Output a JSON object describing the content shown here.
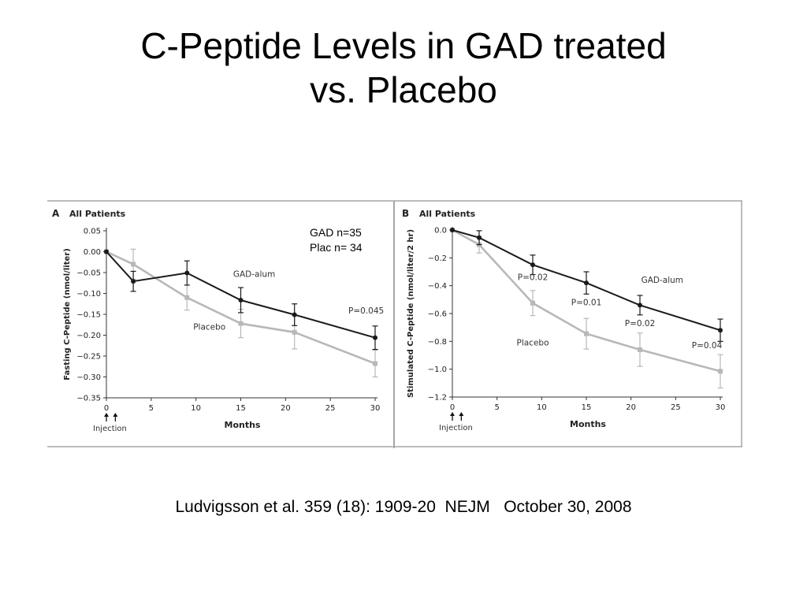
{
  "slide": {
    "title_line1": "C-Peptide Levels in GAD treated",
    "title_line2": "vs. Placebo",
    "citation": "Ludvigsson et al. 359 (18): 1909-20  NEJM   October 30, 2008",
    "note_gad": "GAD n=35",
    "note_plac": "Plac n= 34"
  },
  "colors": {
    "gad": "#1a1a1a",
    "placebo": "#b8b8b8",
    "frame": "#a6a6a6"
  },
  "chart_data": [
    {
      "type": "line",
      "panel_letter": "A",
      "panel_title": "All Patients",
      "xlabel": "Months",
      "ylabel": "Fasting C-Peptide (nmol/liter)",
      "xlim": [
        0,
        30
      ],
      "ylim": [
        -0.35,
        0.05
      ],
      "x_ticks": [
        0,
        5,
        10,
        15,
        20,
        25,
        30
      ],
      "x_tick_labels": [
        "0",
        "5",
        "10",
        "15",
        "20",
        "25",
        "30"
      ],
      "y_ticks": [
        0.05,
        0.0,
        -0.05,
        -0.1,
        -0.15,
        -0.2,
        -0.25,
        -0.3,
        -0.35
      ],
      "y_tick_labels": [
        "0.05",
        "0.00",
        "−0.05",
        "−0.10",
        "−0.15",
        "−0.20",
        "−0.25",
        "−0.30",
        "−0.35"
      ],
      "injection_label": "Injection",
      "injection_months": [
        0,
        1
      ],
      "series": [
        {
          "name": "GAD-alum",
          "color_key": "gad",
          "x": [
            0,
            3,
            9,
            15,
            21,
            30
          ],
          "y": [
            0.0,
            -0.071,
            -0.051,
            -0.116,
            -0.151,
            -0.206
          ],
          "err": [
            0,
            0.024,
            0.029,
            0.03,
            0.026,
            0.028
          ]
        },
        {
          "name": "Placebo",
          "color_key": "placebo",
          "x": [
            0,
            3,
            9,
            15,
            21,
            30
          ],
          "y": [
            0.0,
            -0.03,
            -0.11,
            -0.172,
            -0.193,
            -0.268
          ],
          "err": [
            0,
            0.036,
            0.03,
            0.034,
            0.04,
            0.032
          ]
        }
      ],
      "annotations": [
        {
          "text": "GAD-alum",
          "x": 16.5,
          "y": -0.06
        },
        {
          "text": "Placebo",
          "x": 11.5,
          "y": -0.187
        },
        {
          "text": "P=0.045",
          "x": 29,
          "y": -0.148
        }
      ]
    },
    {
      "type": "line",
      "panel_letter": "B",
      "panel_title": "All Patients",
      "xlabel": "Months",
      "ylabel": "Stimulated C-Peptide (nmol/liter/2 hr)",
      "xlim": [
        0,
        30
      ],
      "ylim": [
        -1.2,
        0.0
      ],
      "x_ticks": [
        0,
        5,
        10,
        15,
        20,
        25,
        30
      ],
      "x_tick_labels": [
        "0",
        "5",
        "10",
        "15",
        "20",
        "25",
        "30"
      ],
      "y_ticks": [
        0.0,
        -0.2,
        -0.4,
        -0.6,
        -0.8,
        -1.0,
        -1.2
      ],
      "y_tick_labels": [
        "0.0",
        "−0.2",
        "−0.4",
        "−0.6",
        "−0.8",
        "−1.0",
        "−1.2"
      ],
      "injection_label": "Injection",
      "injection_months": [
        0,
        1
      ],
      "series": [
        {
          "name": "GAD-alum",
          "color_key": "gad",
          "x": [
            0,
            3,
            9,
            15,
            21,
            30
          ],
          "y": [
            0.0,
            -0.055,
            -0.25,
            -0.38,
            -0.54,
            -0.72
          ],
          "err": [
            0,
            0.05,
            0.07,
            0.08,
            0.07,
            0.08
          ]
        },
        {
          "name": "Placebo",
          "color_key": "placebo",
          "x": [
            0,
            3,
            9,
            15,
            21,
            30
          ],
          "y": [
            0.0,
            -0.105,
            -0.525,
            -0.745,
            -0.86,
            -1.015
          ],
          "err": [
            0,
            0.06,
            0.09,
            0.11,
            0.12,
            0.12
          ]
        }
      ],
      "annotations": [
        {
          "text": "GAD-alum",
          "x": 23.5,
          "y": -0.38
        },
        {
          "text": "Placebo",
          "x": 9,
          "y": -0.83
        },
        {
          "text": "P=0.02",
          "x": 9,
          "y": -0.36
        },
        {
          "text": "P=0.01",
          "x": 15,
          "y": -0.54
        },
        {
          "text": "P=0.02",
          "x": 21,
          "y": -0.69
        },
        {
          "text": "P=0.04",
          "x": 28.5,
          "y": -0.85
        }
      ]
    }
  ]
}
